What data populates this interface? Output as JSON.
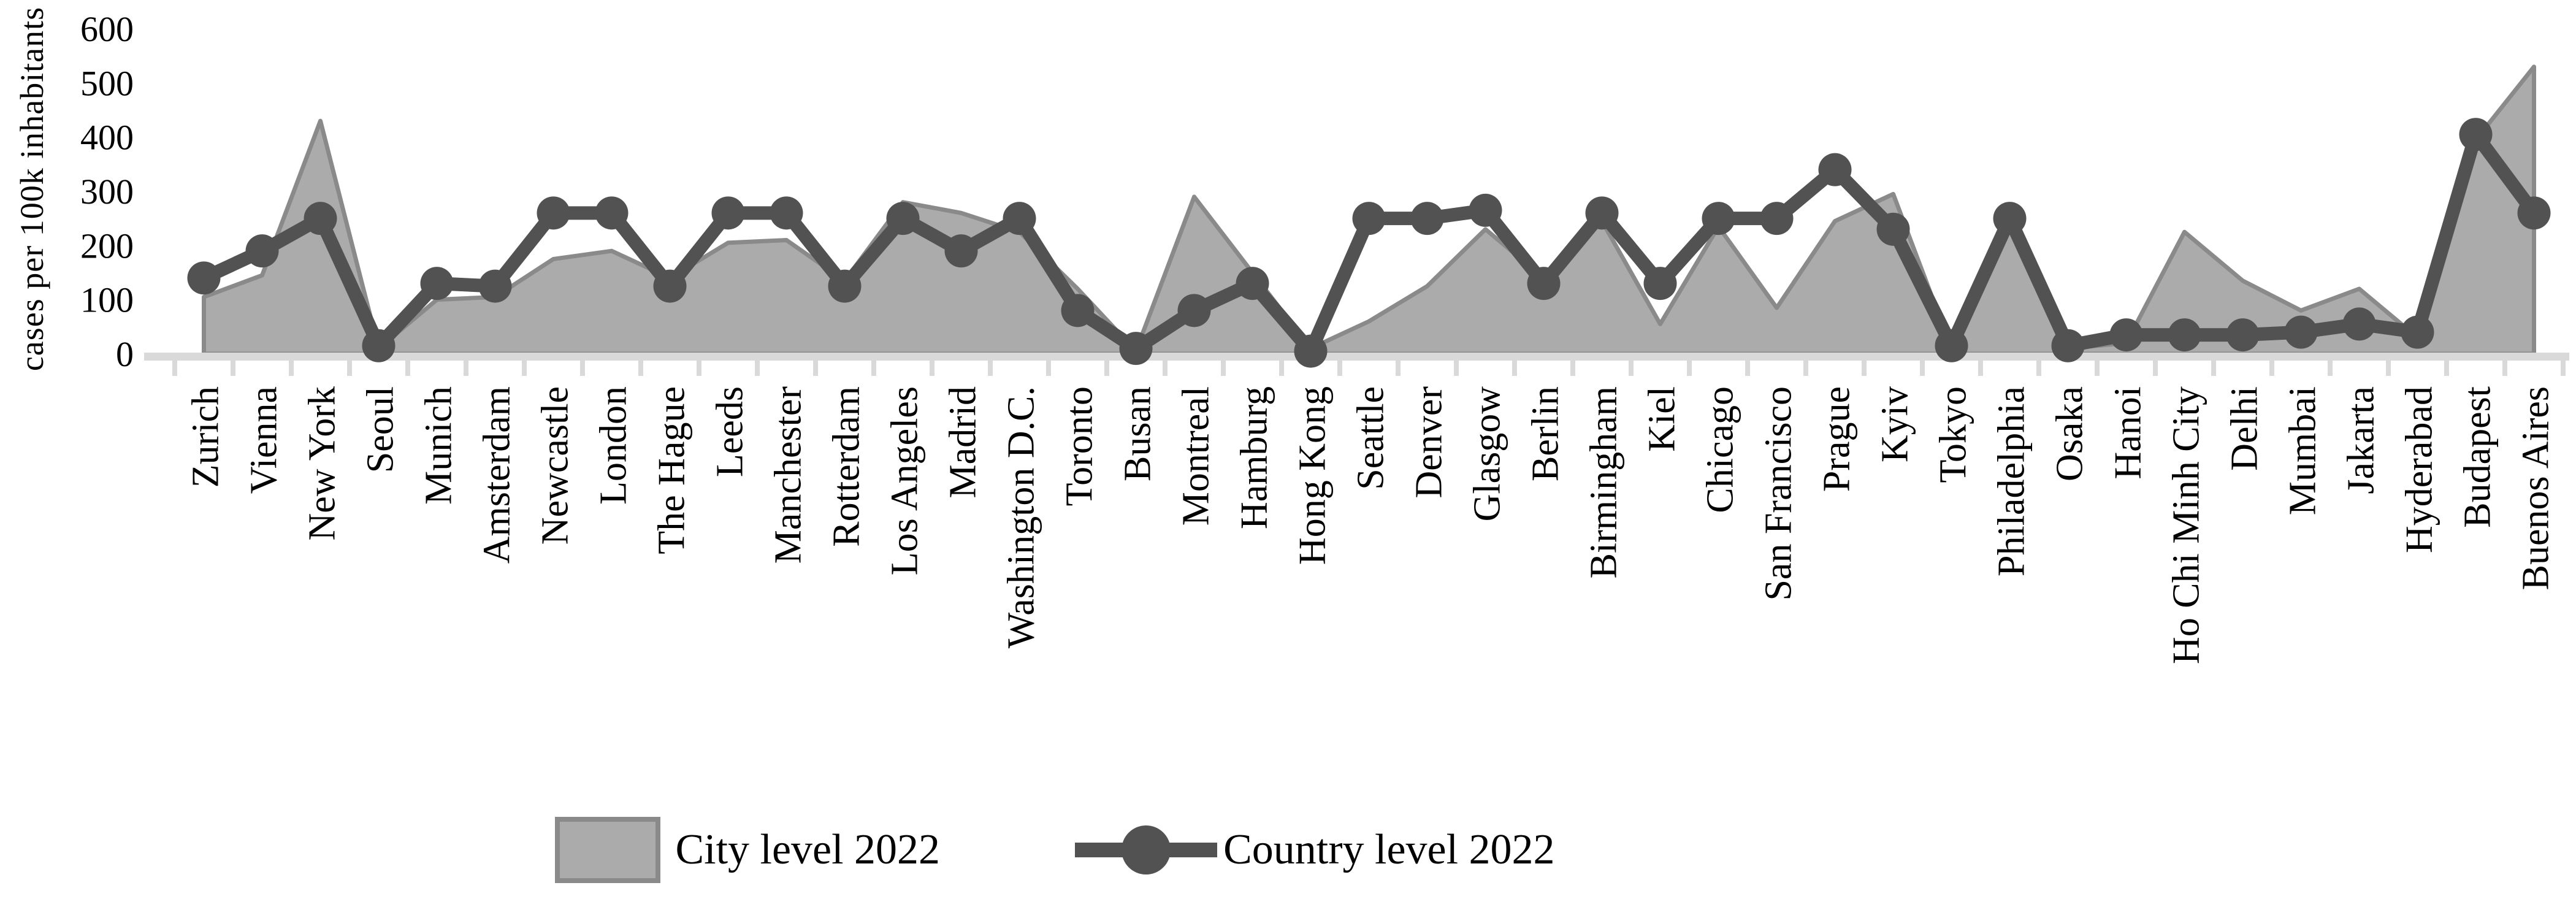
{
  "figure": {
    "background": "#ffffff"
  },
  "legend": {
    "city_label": "City level 2022",
    "country_label": "Country level 2022"
  },
  "chart_data": {
    "type": "area",
    "title": "",
    "xlabel": "",
    "ylabel": "cases per 100k inhabitants",
    "ylim": [
      0,
      600
    ],
    "y_ticks": [
      0,
      100,
      200,
      300,
      400,
      500,
      600
    ],
    "grid": false,
    "legend_position": "bottom",
    "categories": [
      "Zurich",
      "Vienna",
      "New York",
      "Seoul",
      "Munich",
      "Amsterdam",
      "Newcastle",
      "London",
      "The Hague",
      "Leeds",
      "Manchester",
      "Rotterdam",
      "Los Angeles",
      "Madrid",
      "Washington D.C.",
      "Toronto",
      "Busan",
      "Montreal",
      "Hamburg",
      "Hong Kong",
      "Seattle",
      "Denver",
      "Glasgow",
      "Berlin",
      "Birmingham",
      "Kiel",
      "Chicago",
      "San Francisco",
      "Prague",
      "Kyiv",
      "Tokyo",
      "Philadelphia",
      "Osaka",
      "Hanoi",
      "Ho Chi Minh City",
      "Delhi",
      "Mumbai",
      "Jakarta",
      "Hyderabad",
      "Budapest",
      "Buenos Aires"
    ],
    "series": [
      {
        "name": "City level 2022",
        "style": "area",
        "fill": "#ABABAB",
        "stroke": "#8A8A8A",
        "values": [
          105,
          145,
          430,
          10,
          100,
          105,
          175,
          190,
          140,
          205,
          210,
          135,
          280,
          260,
          225,
          120,
          5,
          290,
          150,
          10,
          60,
          125,
          230,
          140,
          245,
          55,
          235,
          85,
          245,
          295,
          10,
          240,
          10,
          20,
          225,
          135,
          80,
          120,
          30,
          395,
          530
        ]
      },
      {
        "name": "Country level 2022",
        "style": "line-markers",
        "color": "#525252",
        "values": [
          140,
          190,
          250,
          15,
          130,
          125,
          260,
          260,
          125,
          260,
          260,
          125,
          250,
          190,
          250,
          80,
          10,
          80,
          130,
          5,
          250,
          250,
          265,
          130,
          260,
          130,
          250,
          250,
          340,
          230,
          15,
          250,
          15,
          35,
          35,
          35,
          40,
          55,
          40,
          405,
          260
        ]
      }
    ],
    "colors": {
      "axis": "#D9D9D9",
      "text": "#000000"
    }
  }
}
